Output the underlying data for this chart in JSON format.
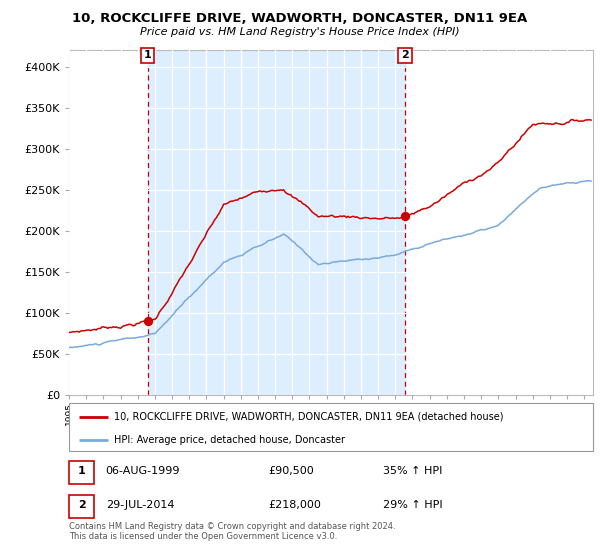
{
  "title": "10, ROCKCLIFFE DRIVE, WADWORTH, DONCASTER, DN11 9EA",
  "subtitle": "Price paid vs. HM Land Registry's House Price Index (HPI)",
  "legend_label_red": "10, ROCKCLIFFE DRIVE, WADWORTH, DONCASTER, DN11 9EA (detached house)",
  "legend_label_blue": "HPI: Average price, detached house, Doncaster",
  "sale1_date": "06-AUG-1999",
  "sale1_price": 90500,
  "sale1_note": "35% ↑ HPI",
  "sale2_date": "29-JUL-2014",
  "sale2_price": 218000,
  "sale2_note": "29% ↑ HPI",
  "footer": "Contains HM Land Registry data © Crown copyright and database right 2024.\nThis data is licensed under the Open Government Licence v3.0.",
  "ylim": [
    0,
    420000
  ],
  "xlim_start": 1995.0,
  "xlim_end": 2025.5,
  "span_color": "#ddeeff",
  "plot_bg": "#ffffff",
  "red_color": "#cc0000",
  "blue_color": "#7aaadd",
  "grid_color": "#dddddd",
  "sale1_x": 1999.59,
  "sale2_x": 2014.57,
  "fig_width": 6.0,
  "fig_height": 5.6,
  "dpi": 100
}
